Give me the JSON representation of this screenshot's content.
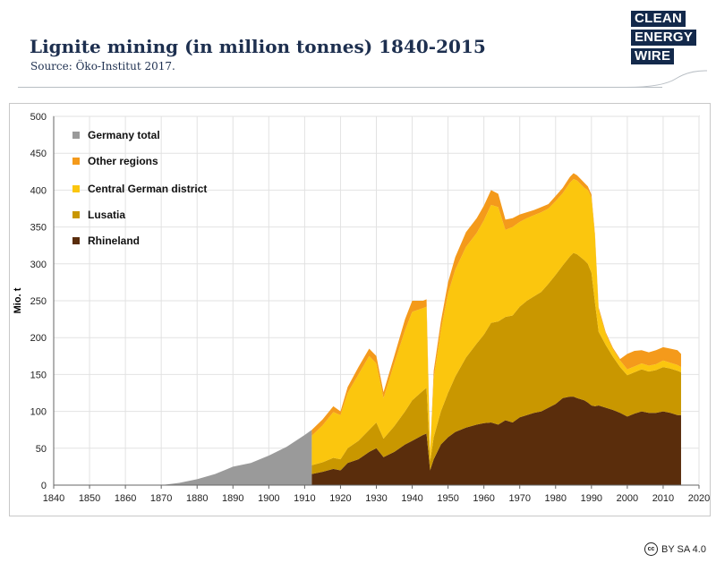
{
  "header": {
    "title": "Lignite mining (in million tonnes) 1840-2015",
    "source": "Source: Öko-Institut 2017."
  },
  "logo": {
    "line1": "CLEAN",
    "line2": "ENERGY",
    "line3": "WIRE"
  },
  "license": {
    "icon": "cc-icon",
    "text": "BY SA 4.0"
  },
  "colors": {
    "germany_total": "#9a9a9a",
    "other_regions": "#f49a1b",
    "central_german": "#fbc60e",
    "lusatia": "#c99700",
    "rhineland": "#5a2d0c",
    "logo_bg": "#13294b",
    "logo_accent": "#42b8ea"
  },
  "chart_data": {
    "type": "area",
    "stacked": true,
    "title": "Lignite mining (in million tonnes) 1840-2015",
    "ylabel": "Mio. t",
    "xlabel": "",
    "xlim": [
      1840,
      2020
    ],
    "ylim": [
      0,
      500
    ],
    "xticks": [
      "1840",
      "1850",
      "1860",
      "1870",
      "1880",
      "1890",
      "1900",
      "1910",
      "1920",
      "1930",
      "1940",
      "1950",
      "1960",
      "1970",
      "1980",
      "1990",
      "2000",
      "2010",
      "2020"
    ],
    "yticks": [
      "0",
      "50",
      "100",
      "150",
      "200",
      "250",
      "300",
      "350",
      "400",
      "450",
      "500"
    ],
    "grid": true,
    "legend_position": "top-left",
    "legend": [
      "Germany total",
      "Other regions",
      "Central German district",
      "Lusatia",
      "Rhineland"
    ],
    "germany_total": {
      "name": "Germany total",
      "x": [
        1870,
        1875,
        1880,
        1885,
        1890,
        1895,
        1900,
        1905,
        1910,
        1912
      ],
      "y": [
        0,
        3,
        8,
        15,
        25,
        30,
        40,
        52,
        68,
        75
      ]
    },
    "x": [
      1912,
      1915,
      1918,
      1920,
      1922,
      1925,
      1928,
      1930,
      1932,
      1935,
      1938,
      1940,
      1943,
      1944,
      1945,
      1946,
      1948,
      1950,
      1952,
      1955,
      1958,
      1960,
      1962,
      1964,
      1966,
      1968,
      1970,
      1972,
      1974,
      1976,
      1978,
      1980,
      1982,
      1984,
      1985,
      1986,
      1988,
      1989,
      1990,
      1991,
      1992,
      1994,
      1996,
      1998,
      2000,
      2002,
      2004,
      2006,
      2008,
      2010,
      2012,
      2014,
      2015
    ],
    "series": [
      {
        "name": "Rhineland",
        "values": [
          15,
          18,
          22,
          20,
          30,
          35,
          45,
          50,
          38,
          45,
          55,
          60,
          68,
          70,
          20,
          35,
          55,
          65,
          72,
          78,
          82,
          84,
          85,
          82,
          88,
          85,
          92,
          95,
          98,
          100,
          105,
          110,
          118,
          120,
          120,
          118,
          115,
          112,
          108,
          107,
          108,
          105,
          102,
          98,
          93,
          97,
          100,
          98,
          98,
          100,
          98,
          95,
          95
        ]
      },
      {
        "name": "Lusatia",
        "values": [
          12,
          13,
          15,
          15,
          20,
          25,
          30,
          35,
          25,
          35,
          45,
          55,
          60,
          62,
          12,
          30,
          45,
          60,
          75,
          95,
          110,
          120,
          135,
          140,
          140,
          145,
          150,
          155,
          158,
          162,
          168,
          175,
          180,
          190,
          195,
          195,
          190,
          188,
          180,
          140,
          100,
          85,
          72,
          62,
          56,
          56,
          57,
          56,
          58,
          60,
          60,
          60,
          58
        ]
      },
      {
        "name": "Central German district",
        "values": [
          40,
          50,
          62,
          60,
          75,
          90,
          100,
          80,
          55,
          85,
          110,
          120,
          112,
          110,
          10,
          80,
          110,
          135,
          145,
          150,
          150,
          155,
          160,
          155,
          118,
          120,
          115,
          112,
          110,
          108,
          102,
          100,
          98,
          100,
          100,
          100,
          98,
          100,
          102,
          90,
          30,
          15,
          10,
          9,
          8,
          8,
          8,
          8,
          8,
          9,
          8,
          8,
          7
        ]
      },
      {
        "name": "Other regions",
        "values": [
          8,
          8,
          8,
          5,
          8,
          10,
          10,
          10,
          8,
          10,
          15,
          15,
          10,
          10,
          3,
          10,
          12,
          15,
          17,
          20,
          20,
          20,
          20,
          18,
          14,
          12,
          10,
          8,
          7,
          7,
          6,
          7,
          7,
          8,
          8,
          7,
          7,
          5,
          4,
          3,
          3,
          2,
          2,
          2,
          21,
          21,
          18,
          18,
          19,
          18,
          19,
          20,
          18
        ]
      }
    ]
  }
}
